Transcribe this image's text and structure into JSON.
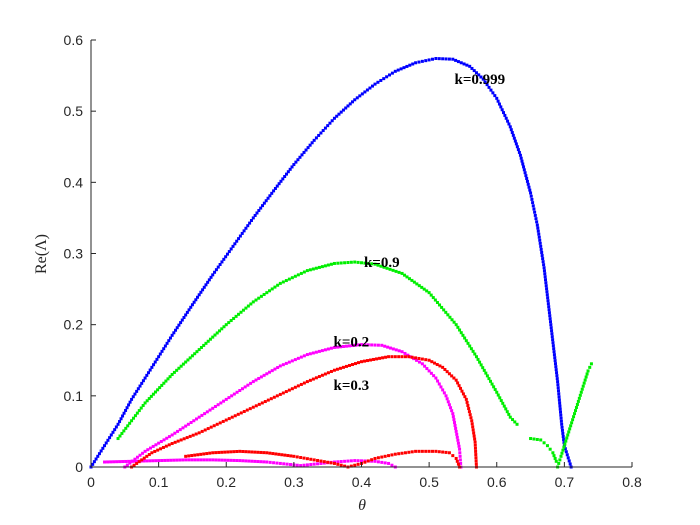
{
  "chart_data": {
    "type": "scatter",
    "xlabel": "θ",
    "ylabel": "Re(Λ)",
    "xlim": [
      0,
      0.8
    ],
    "ylim": [
      0,
      0.6
    ],
    "xticks": [
      "0",
      "0.1",
      "0.2",
      "0.3",
      "0.4",
      "0.5",
      "0.6",
      "0.7",
      "0.8"
    ],
    "yticks": [
      "0",
      "0.1",
      "0.2",
      "0.3",
      "0.4",
      "0.5",
      "0.6"
    ],
    "grid": false,
    "box": false,
    "annotations": [
      {
        "text": "k=0.999",
        "x": 0.575,
        "y": 0.545
      },
      {
        "text": "k=0.9",
        "x": 0.43,
        "y": 0.288
      },
      {
        "text": "k=0.2",
        "x": 0.385,
        "y": 0.176
      },
      {
        "text": "k=0.3",
        "x": 0.385,
        "y": 0.115
      }
    ],
    "series": [
      {
        "color": "#0000ff",
        "points": [
          [
            0.0,
            0.0
          ],
          [
            0.04,
            0.06
          ],
          [
            0.06,
            0.095
          ],
          [
            0.09,
            0.14
          ],
          [
            0.12,
            0.185
          ],
          [
            0.15,
            0.228
          ],
          [
            0.18,
            0.27
          ],
          [
            0.21,
            0.31
          ],
          [
            0.24,
            0.35
          ],
          [
            0.27,
            0.388
          ],
          [
            0.3,
            0.425
          ],
          [
            0.33,
            0.459
          ],
          [
            0.36,
            0.49
          ],
          [
            0.39,
            0.516
          ],
          [
            0.42,
            0.538
          ],
          [
            0.45,
            0.556
          ],
          [
            0.48,
            0.568
          ],
          [
            0.51,
            0.574
          ],
          [
            0.535,
            0.573
          ],
          [
            0.56,
            0.563
          ],
          [
            0.58,
            0.545
          ],
          [
            0.6,
            0.518
          ],
          [
            0.62,
            0.478
          ],
          [
            0.635,
            0.438
          ],
          [
            0.65,
            0.385
          ],
          [
            0.66,
            0.34
          ],
          [
            0.67,
            0.28
          ],
          [
            0.68,
            0.2
          ],
          [
            0.69,
            0.12
          ],
          [
            0.696,
            0.06
          ],
          [
            0.7,
            0.03
          ],
          [
            0.71,
            0.0
          ]
        ]
      },
      {
        "color": "#00ee00",
        "points": [
          [
            0.04,
            0.04
          ],
          [
            0.08,
            0.09
          ],
          [
            0.12,
            0.13
          ],
          [
            0.16,
            0.165
          ],
          [
            0.2,
            0.2
          ],
          [
            0.24,
            0.232
          ],
          [
            0.28,
            0.258
          ],
          [
            0.32,
            0.276
          ],
          [
            0.36,
            0.286
          ],
          [
            0.39,
            0.288
          ],
          [
            0.42,
            0.285
          ],
          [
            0.46,
            0.272
          ],
          [
            0.5,
            0.245
          ],
          [
            0.54,
            0.2
          ],
          [
            0.57,
            0.155
          ],
          [
            0.6,
            0.105
          ],
          [
            0.62,
            0.07
          ],
          [
            0.63,
            0.06
          ]
        ]
      },
      {
        "color": "#00ee00",
        "points": [
          [
            0.65,
            0.04
          ],
          [
            0.665,
            0.038
          ],
          [
            0.675,
            0.03
          ],
          [
            0.683,
            0.02
          ],
          [
            0.688,
            0.008
          ],
          [
            0.69,
            0.0
          ],
          [
            0.695,
            0.015
          ],
          [
            0.705,
            0.045
          ],
          [
            0.715,
            0.075
          ],
          [
            0.725,
            0.105
          ],
          [
            0.735,
            0.135
          ],
          [
            0.74,
            0.145
          ]
        ]
      },
      {
        "color": "#ff00ff",
        "points": [
          [
            0.05,
            0.0
          ],
          [
            0.08,
            0.022
          ],
          [
            0.12,
            0.045
          ],
          [
            0.16,
            0.07
          ],
          [
            0.2,
            0.095
          ],
          [
            0.24,
            0.12
          ],
          [
            0.28,
            0.142
          ],
          [
            0.32,
            0.158
          ],
          [
            0.36,
            0.168
          ],
          [
            0.4,
            0.172
          ],
          [
            0.43,
            0.171
          ],
          [
            0.46,
            0.162
          ],
          [
            0.49,
            0.145
          ],
          [
            0.51,
            0.125
          ],
          [
            0.525,
            0.1
          ],
          [
            0.535,
            0.075
          ],
          [
            0.54,
            0.05
          ],
          [
            0.545,
            0.025
          ],
          [
            0.547,
            0.0
          ]
        ]
      },
      {
        "color": "#ff00ff",
        "points": [
          [
            0.02,
            0.007
          ],
          [
            0.06,
            0.008
          ],
          [
            0.1,
            0.009
          ],
          [
            0.14,
            0.01
          ],
          [
            0.18,
            0.01
          ],
          [
            0.22,
            0.009
          ],
          [
            0.26,
            0.007
          ],
          [
            0.29,
            0.004
          ],
          [
            0.31,
            0.002
          ],
          [
            0.33,
            0.004
          ],
          [
            0.36,
            0.007
          ],
          [
            0.39,
            0.009
          ],
          [
            0.42,
            0.008
          ],
          [
            0.44,
            0.005
          ],
          [
            0.45,
            0.0
          ]
        ]
      },
      {
        "color": "#ff0000",
        "points": [
          [
            0.06,
            0.0
          ],
          [
            0.09,
            0.02
          ],
          [
            0.12,
            0.033
          ],
          [
            0.16,
            0.048
          ],
          [
            0.2,
            0.066
          ],
          [
            0.24,
            0.084
          ],
          [
            0.28,
            0.102
          ],
          [
            0.32,
            0.12
          ],
          [
            0.36,
            0.136
          ],
          [
            0.4,
            0.148
          ],
          [
            0.44,
            0.155
          ],
          [
            0.47,
            0.155
          ],
          [
            0.5,
            0.15
          ],
          [
            0.52,
            0.14
          ],
          [
            0.54,
            0.122
          ],
          [
            0.555,
            0.095
          ],
          [
            0.563,
            0.065
          ],
          [
            0.568,
            0.035
          ],
          [
            0.57,
            0.0
          ]
        ]
      },
      {
        "color": "#ff0000",
        "points": [
          [
            0.14,
            0.015
          ],
          [
            0.18,
            0.02
          ],
          [
            0.22,
            0.022
          ],
          [
            0.26,
            0.02
          ],
          [
            0.3,
            0.015
          ],
          [
            0.33,
            0.01
          ],
          [
            0.36,
            0.005
          ],
          [
            0.38,
            0.0
          ],
          [
            0.4,
            0.005
          ],
          [
            0.42,
            0.012
          ],
          [
            0.45,
            0.018
          ],
          [
            0.48,
            0.022
          ],
          [
            0.51,
            0.022
          ],
          [
            0.53,
            0.02
          ],
          [
            0.54,
            0.012
          ],
          [
            0.545,
            0.0
          ]
        ]
      }
    ]
  }
}
